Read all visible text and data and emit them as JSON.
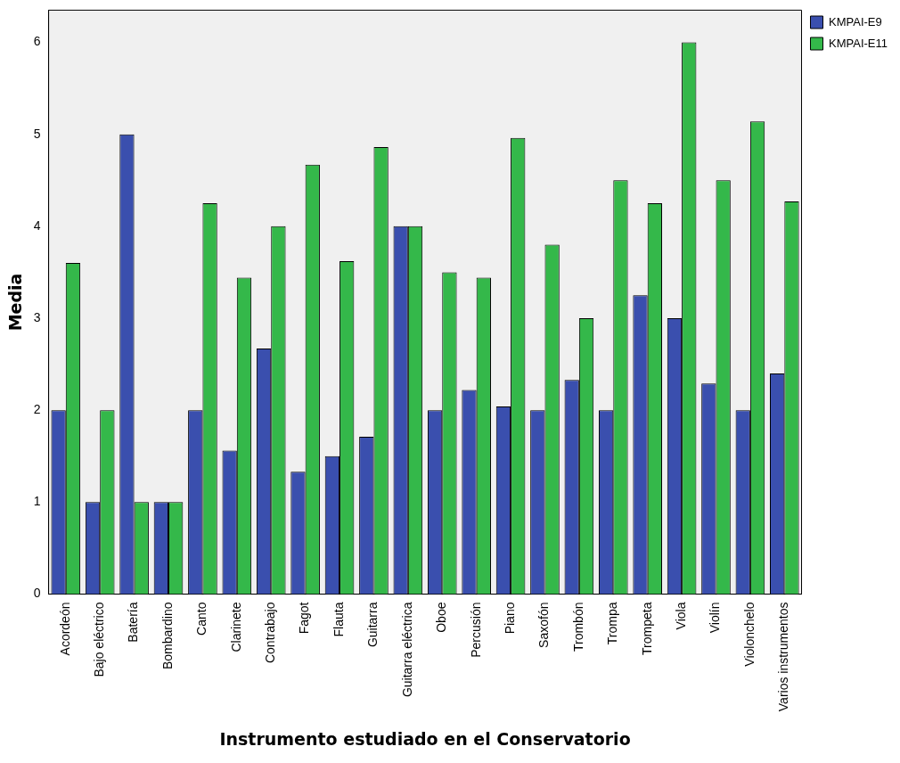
{
  "chart_data": {
    "type": "bar",
    "xlabel": "Instrumento estudiado en el Conservatorio",
    "ylabel": "Media",
    "categories": [
      "Acordeón",
      "Bajo eléctrico",
      "Batería",
      "Bombardino",
      "Canto",
      "Clarinete",
      "Contrabajo",
      "Fagot",
      "Flauta",
      "Guitarra",
      "Guitarra eléctrica",
      "Oboe",
      "Percusión",
      "Piano",
      "Saxofón",
      "Trombón",
      "Trompa",
      "Trompeta",
      "Viola",
      "Violín",
      "Violonchelo",
      "Varios instrumentos"
    ],
    "series": [
      {
        "name": "KMPAI-E9",
        "color": "#3a4fae",
        "values": [
          2,
          1,
          5,
          1,
          2,
          1.56,
          2.67,
          1.33,
          1.5,
          1.71,
          4,
          2,
          2.22,
          2.04,
          2,
          2.33,
          2,
          3.25,
          3,
          2.29,
          2,
          2.4
        ]
      },
      {
        "name": "KMPAI-E11",
        "color": "#34b84a",
        "values": [
          3.6,
          2,
          1,
          1,
          4.25,
          3.44,
          4,
          4.67,
          3.62,
          4.86,
          4,
          3.5,
          3.44,
          4.96,
          3.8,
          3,
          4.5,
          4.25,
          6,
          4.5,
          5.14,
          4.27
        ]
      }
    ],
    "ylim": [
      0,
      6.35
    ],
    "yticks": [
      0,
      1,
      2,
      3,
      4,
      5,
      6
    ],
    "grid": false,
    "legend": "top right"
  }
}
